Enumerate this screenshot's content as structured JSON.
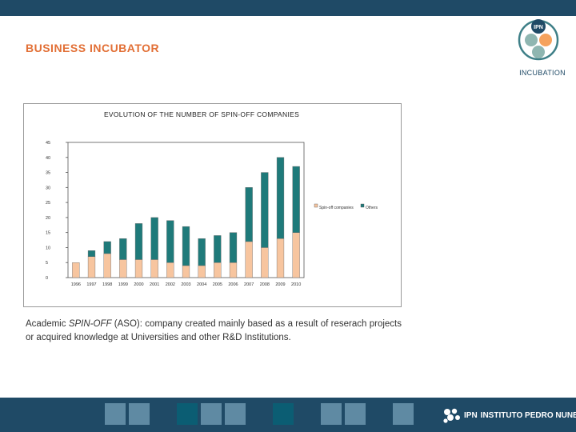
{
  "header": {
    "title": "BUSINESS INCUBATOR",
    "logo_text": "IPN",
    "logo_caption": "INCUBATION",
    "bar_color": "#1f4a66",
    "title_color": "#e26f35"
  },
  "chart_data": {
    "type": "bar",
    "title": "EVOLUTION OF THE NUMBER OF SPIN-OFF COMPANIES",
    "xlabel": "",
    "ylabel": "",
    "categories": [
      "1996",
      "1997",
      "1998",
      "1999",
      "2000",
      "2001",
      "2002",
      "2003",
      "2004",
      "2005",
      "2006",
      "2007",
      "2008",
      "2009",
      "2010"
    ],
    "stacked": true,
    "series": [
      {
        "name": "Spin-off companies",
        "color": "#f7c59f",
        "values": [
          5,
          7,
          8,
          6,
          6,
          6,
          5,
          4,
          4,
          5,
          5,
          12,
          10,
          13,
          15
        ]
      },
      {
        "name": "Others",
        "color": "#1f7a7a",
        "values": [
          0,
          2,
          4,
          7,
          12,
          14,
          14,
          13,
          9,
          9,
          10,
          18,
          25,
          27,
          22
        ]
      }
    ],
    "ylim": [
      0,
      45
    ],
    "yticks": [
      0,
      5,
      10,
      15,
      20,
      25,
      30,
      35,
      40,
      45
    ],
    "grid": false,
    "legend_position": "right"
  },
  "caption": {
    "prefix": "Academic ",
    "emphasis": "SPIN-OFF",
    "rest": " (ASO): company created mainly based as a result of reserach projects or acquired knowledge at Universities and other R&D Institutions."
  },
  "footer": {
    "brand_short": "IPN",
    "brand_full": "INSTITUTO PEDRO NUNES",
    "squares": [
      {
        "color": "#5f8aa3"
      },
      {
        "color": "#5f8aa3"
      },
      {
        "color": "#0b5d73"
      },
      {
        "color": "#5f8aa3"
      },
      {
        "color": "#5f8aa3"
      },
      {
        "color": "#0b5d73"
      },
      {
        "color": "#5f8aa3"
      },
      {
        "color": "#5f8aa3"
      },
      {
        "color": "#5f8aa3"
      }
    ]
  }
}
